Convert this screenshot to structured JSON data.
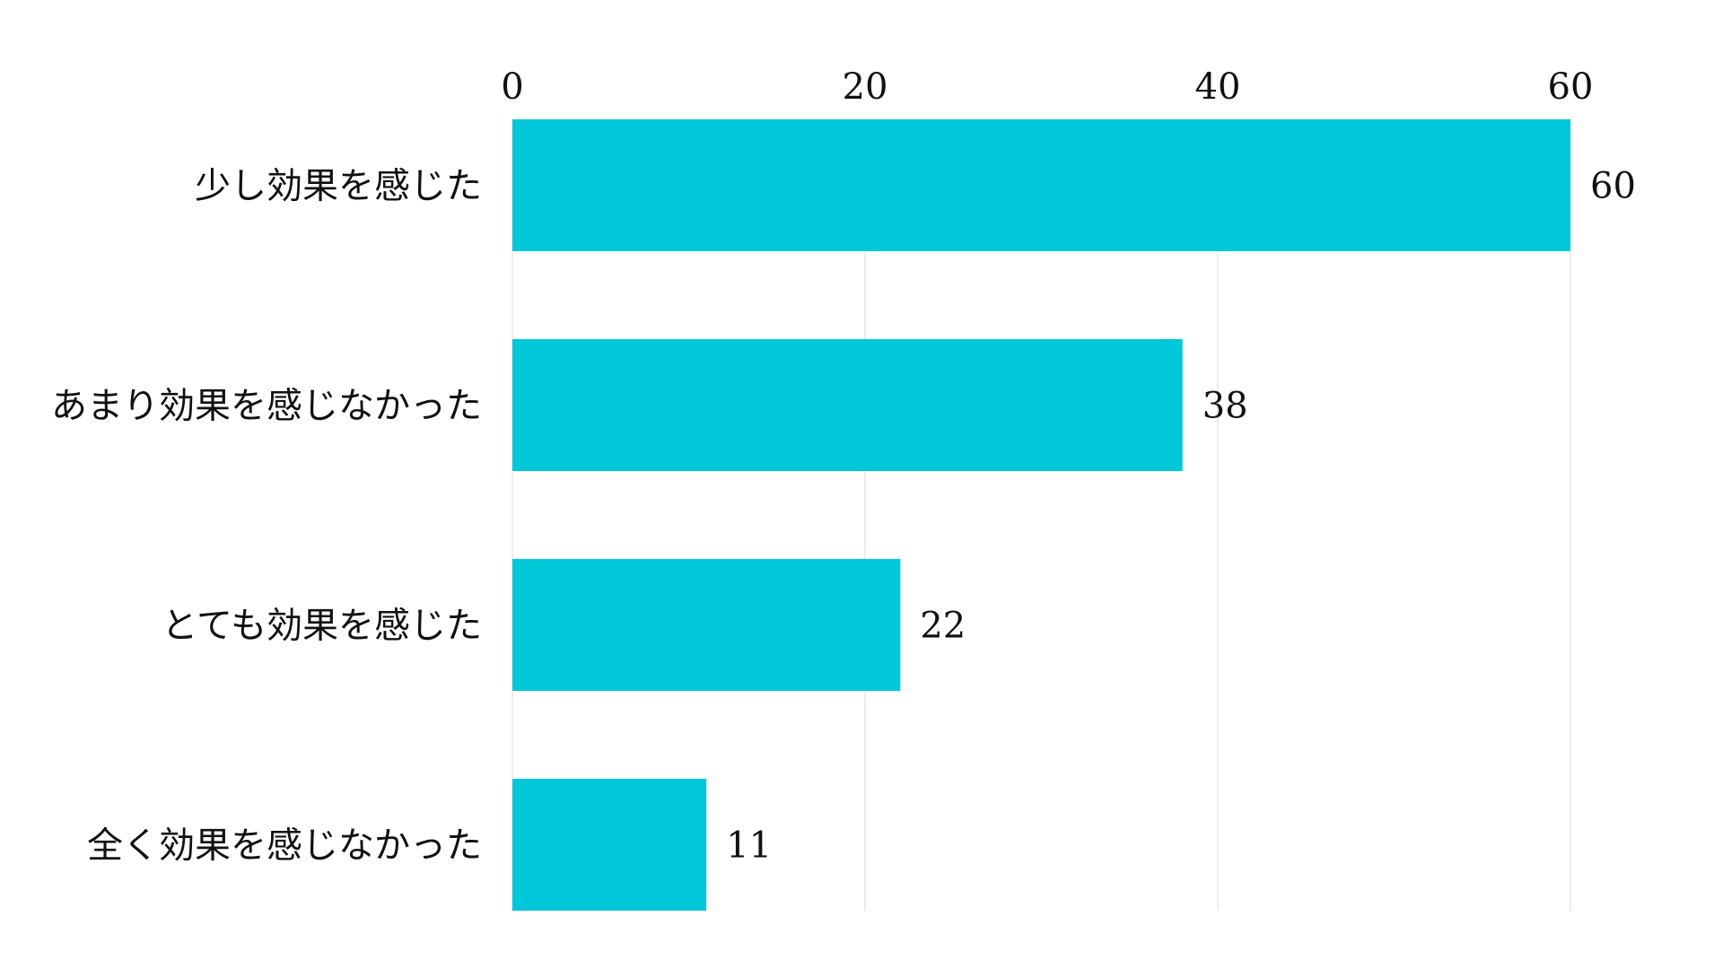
{
  "chart_data": {
    "type": "bar",
    "orientation": "horizontal",
    "categories": [
      "少し効果を感じた",
      "あまり効果を感じなかった",
      "とても効果を感じた",
      "全く効果を感じなかった"
    ],
    "values": [
      60,
      38,
      22,
      11
    ],
    "title": "",
    "xlabel": "",
    "ylabel": "",
    "xlim": [
      0,
      60
    ],
    "x_ticks": [
      0,
      20,
      40,
      60
    ],
    "x_axis_position": "top",
    "grid": true,
    "legend": "none",
    "bar_color": "#00c8d9",
    "data_labels": true
  }
}
